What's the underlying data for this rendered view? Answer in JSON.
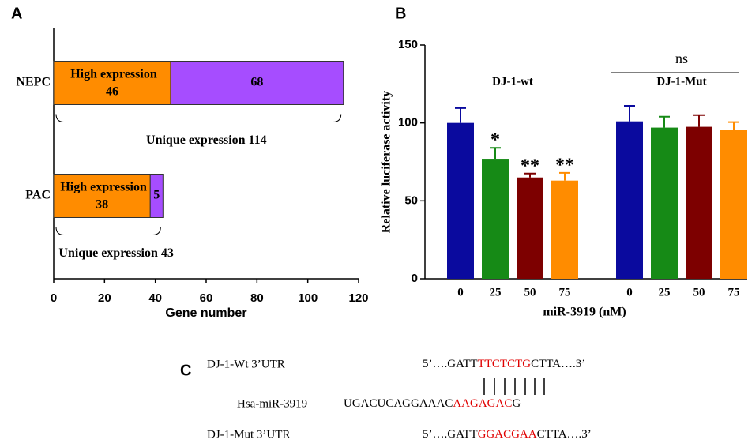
{
  "chart_data": [
    {
      "type": "bar",
      "panel": "A",
      "orientation": "horizontal",
      "stacked": true,
      "categories": [
        "NEPC",
        "PAC"
      ],
      "series": [
        {
          "name": "High expression",
          "color": "#ff8c00",
          "values": [
            46,
            38
          ]
        },
        {
          "color": "#a64dff",
          "values": [
            68,
            5
          ]
        }
      ],
      "brackets": [
        "Unique expression 114",
        "Unique expression 43"
      ],
      "xlabel": "Gene number",
      "xlim": [
        0,
        120
      ],
      "xticks": [
        0,
        20,
        40,
        60,
        80,
        100,
        120
      ]
    },
    {
      "type": "bar",
      "panel": "B",
      "orientation": "vertical",
      "categories": [
        "0",
        "25",
        "50",
        "75",
        "0",
        "25",
        "50",
        "75"
      ],
      "values": [
        100,
        77,
        65,
        63,
        101,
        97,
        97.5,
        95.5
      ],
      "errors": [
        9.5,
        7,
        2.5,
        5,
        10,
        7,
        7.5,
        5
      ],
      "colors": [
        "#0a0a9e",
        "#168a16",
        "#7d0000",
        "#ff8c00",
        "#0a0a9e",
        "#168a16",
        "#7d0000",
        "#ff8c00"
      ],
      "significance": [
        null,
        "*",
        "**",
        "**",
        null,
        null,
        null,
        null
      ],
      "groups": [
        {
          "label": "DJ-1-wt"
        },
        {
          "label": "DJ-1-Mut",
          "note": "ns"
        }
      ],
      "ylabel": "Relative luciferase activity",
      "xlabel": "miR-3919 (nM)",
      "ylim": [
        0,
        150
      ],
      "yticks": [
        0,
        50,
        100,
        150
      ]
    }
  ],
  "sequence": {
    "panel": "C",
    "rows": [
      {
        "name": "DJ-1-Wt 3’UTR",
        "parts": [
          "5’….GATT",
          "TTCTCTG",
          "CTTA….3’"
        ]
      },
      {
        "name": "Hsa-miR-3919",
        "parts": [
          "UGACUCAGGAAAC",
          "AAGAGAC",
          "G"
        ]
      },
      {
        "name": "DJ-1-Mut 3’UTR",
        "parts": [
          "5’….GATT",
          "GGACGAA",
          "CTTA….3’"
        ]
      }
    ]
  }
}
